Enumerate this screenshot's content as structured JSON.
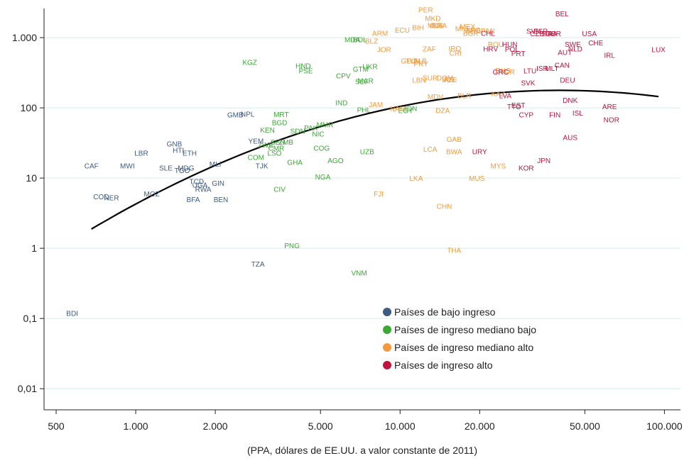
{
  "chart_data": {
    "type": "scatter",
    "x_scale": "log",
    "y_scale": "log",
    "xlim": [
      450,
      115000
    ],
    "ylim": [
      0.005,
      2600
    ],
    "xlabel": "(PPA, dólares de EE.UU. a valor constante de 2011)",
    "x_ticks": [
      {
        "value": 500,
        "label": "500"
      },
      {
        "value": 1000,
        "label": "1.000"
      },
      {
        "value": 2000,
        "label": "2.000"
      },
      {
        "value": 5000,
        "label": "5.000"
      },
      {
        "value": 10000,
        "label": "10.000"
      },
      {
        "value": 20000,
        "label": "20.000"
      },
      {
        "value": 50000,
        "label": "50.000"
      },
      {
        "value": 100000,
        "label": "100.000"
      }
    ],
    "y_ticks": [
      {
        "value": 0.01,
        "label": "0,01"
      },
      {
        "value": 0.1,
        "label": "0,1"
      },
      {
        "value": 1,
        "label": "1"
      },
      {
        "value": 10,
        "label": "10"
      },
      {
        "value": 100,
        "label": "100"
      },
      {
        "value": 1000,
        "label": "1.000"
      }
    ],
    "grid": "horizontal",
    "legend_position": "bottom-right",
    "colors": {
      "low": "#3d5a80",
      "lower_middle": "#3aaa35",
      "upper_middle": "#f59a3a",
      "high": "#c0143c",
      "fit": "#000000",
      "grid": "#d6ecec"
    },
    "series": [
      {
        "key": "low",
        "name": "Países de bajo ingreso",
        "points": [
          {
            "x": 575,
            "y": 0.12,
            "label": "BDI"
          },
          {
            "x": 680,
            "y": 15,
            "label": "CAF"
          },
          {
            "x": 740,
            "y": 5.5,
            "label": "COD"
          },
          {
            "x": 810,
            "y": 5.3,
            "label": "NER"
          },
          {
            "x": 930,
            "y": 15,
            "label": "MWI"
          },
          {
            "x": 1050,
            "y": 23,
            "label": "LBR"
          },
          {
            "x": 1150,
            "y": 6,
            "label": "MOZ"
          },
          {
            "x": 1300,
            "y": 14,
            "label": "SLE"
          },
          {
            "x": 1400,
            "y": 31,
            "label": "GNB"
          },
          {
            "x": 1450,
            "y": 25,
            "label": "HTI"
          },
          {
            "x": 1500,
            "y": 13,
            "label": "TGO"
          },
          {
            "x": 1550,
            "y": 14,
            "label": "MDG"
          },
          {
            "x": 1600,
            "y": 23,
            "label": "ETH"
          },
          {
            "x": 1650,
            "y": 5,
            "label": "BFA"
          },
          {
            "x": 1700,
            "y": 9,
            "label": "TCD"
          },
          {
            "x": 1750,
            "y": 8,
            "label": "UGA"
          },
          {
            "x": 1800,
            "y": 7,
            "label": "RWA"
          },
          {
            "x": 2000,
            "y": 16,
            "label": "MLI"
          },
          {
            "x": 2050,
            "y": 8.5,
            "label": "GIN"
          },
          {
            "x": 2100,
            "y": 5,
            "label": "BEN"
          },
          {
            "x": 2380,
            "y": 80,
            "label": "GMB"
          },
          {
            "x": 2650,
            "y": 82,
            "label": "NPL"
          },
          {
            "x": 2900,
            "y": 0.6,
            "label": "TZA"
          },
          {
            "x": 2850,
            "y": 34,
            "label": "YEM"
          },
          {
            "x": 3000,
            "y": 15,
            "label": "TJK"
          }
        ]
      },
      {
        "key": "lower_middle",
        "name": "Países de ingreso mediano bajo",
        "points": [
          {
            "x": 2700,
            "y": 450,
            "label": "KGZ"
          },
          {
            "x": 3100,
            "y": 30,
            "label": "ZWE"
          },
          {
            "x": 2850,
            "y": 20,
            "label": "COM"
          },
          {
            "x": 3150,
            "y": 49,
            "label": "KEN"
          },
          {
            "x": 3400,
            "y": 27,
            "label": "CMR"
          },
          {
            "x": 3450,
            "y": 33,
            "label": "SEN"
          },
          {
            "x": 3700,
            "y": 33,
            "label": "ZMB"
          },
          {
            "x": 3350,
            "y": 23,
            "label": "LSO"
          },
          {
            "x": 3500,
            "y": 62,
            "label": "BGD"
          },
          {
            "x": 3550,
            "y": 81,
            "label": "MRT"
          },
          {
            "x": 3500,
            "y": 7,
            "label": "CIV"
          },
          {
            "x": 3900,
            "y": 1.1,
            "label": "PNG"
          },
          {
            "x": 4000,
            "y": 17,
            "label": "GHA"
          },
          {
            "x": 4100,
            "y": 47,
            "label": "SDN"
          },
          {
            "x": 4300,
            "y": 400,
            "label": "HND"
          },
          {
            "x": 4400,
            "y": 340,
            "label": "PSE"
          },
          {
            "x": 4600,
            "y": 52,
            "label": "PAK"
          },
          {
            "x": 4900,
            "y": 43,
            "label": "NIC"
          },
          {
            "x": 5200,
            "y": 58,
            "label": "MMR"
          },
          {
            "x": 5050,
            "y": 27,
            "label": "COG"
          },
          {
            "x": 5100,
            "y": 10.5,
            "label": "NGA"
          },
          {
            "x": 5700,
            "y": 18,
            "label": "AGO"
          },
          {
            "x": 6000,
            "y": 120,
            "label": "IND"
          },
          {
            "x": 6100,
            "y": 290,
            "label": "CPV"
          },
          {
            "x": 6600,
            "y": 950,
            "label": "MDA"
          },
          {
            "x": 7000,
            "y": 0.45,
            "label": "VNM"
          },
          {
            "x": 7050,
            "y": 950,
            "label": "BOL"
          },
          {
            "x": 7100,
            "y": 360,
            "label": "GTM"
          },
          {
            "x": 7150,
            "y": 240,
            "label": "SLV"
          },
          {
            "x": 7300,
            "y": 95,
            "label": "PHL"
          },
          {
            "x": 7400,
            "y": 245,
            "label": "MAR"
          },
          {
            "x": 7500,
            "y": 24,
            "label": "UZB"
          },
          {
            "x": 7700,
            "y": 390,
            "label": "UKR"
          },
          {
            "x": 10500,
            "y": 92,
            "label": "EGY"
          },
          {
            "x": 11000,
            "y": 99,
            "label": "IDN"
          }
        ]
      },
      {
        "key": "upper_middle",
        "name": "Países de ingreso mediano alto",
        "points": [
          {
            "x": 7800,
            "y": 900,
            "label": "BLZ"
          },
          {
            "x": 8100,
            "y": 112,
            "label": "JAM"
          },
          {
            "x": 8300,
            "y": 6,
            "label": "FJI"
          },
          {
            "x": 8400,
            "y": 1170,
            "label": "ARM"
          },
          {
            "x": 8700,
            "y": 680,
            "label": "JOR"
          },
          {
            "x": 9800,
            "y": 98,
            "label": "NAM"
          },
          {
            "x": 10200,
            "y": 1300,
            "label": "ECU"
          },
          {
            "x": 10800,
            "y": 470,
            "label": "GEO"
          },
          {
            "x": 11200,
            "y": 470,
            "label": "TUN"
          },
          {
            "x": 11500,
            "y": 10,
            "label": "LKA"
          },
          {
            "x": 11700,
            "y": 1400,
            "label": "BIH"
          },
          {
            "x": 11900,
            "y": 470,
            "label": "ALB"
          },
          {
            "x": 11800,
            "y": 250,
            "label": "LBN"
          },
          {
            "x": 12000,
            "y": 430,
            "label": "PRY"
          },
          {
            "x": 12500,
            "y": 2500,
            "label": "PER"
          },
          {
            "x": 13000,
            "y": 26,
            "label": "LCA"
          },
          {
            "x": 12900,
            "y": 700,
            "label": "ZAF"
          },
          {
            "x": 13000,
            "y": 270,
            "label": "SUR"
          },
          {
            "x": 13300,
            "y": 1900,
            "label": "MKD"
          },
          {
            "x": 13600,
            "y": 1500,
            "label": "MUS"
          },
          {
            "x": 13800,
            "y": 1500,
            "label": "COL"
          },
          {
            "x": 14100,
            "y": 1500,
            "label": "BRA"
          },
          {
            "x": 13600,
            "y": 145,
            "label": "MDV"
          },
          {
            "x": 14500,
            "y": 92,
            "label": "DZA"
          },
          {
            "x": 14700,
            "y": 4,
            "label": "CHN"
          },
          {
            "x": 14800,
            "y": 270,
            "label": "DOM"
          },
          {
            "x": 15200,
            "y": 255,
            "label": "IRN"
          },
          {
            "x": 15500,
            "y": 255,
            "label": "AZE"
          },
          {
            "x": 16000,
            "y": 0.95,
            "label": "THA"
          },
          {
            "x": 16000,
            "y": 36,
            "label": "GAB"
          },
          {
            "x": 16000,
            "y": 24,
            "label": "BWA"
          },
          {
            "x": 16100,
            "y": 705,
            "label": "IRQ"
          },
          {
            "x": 16200,
            "y": 610,
            "label": "CRI"
          },
          {
            "x": 17300,
            "y": 1350,
            "label": "MNE"
          },
          {
            "x": 17500,
            "y": 150,
            "label": "BLR"
          },
          {
            "x": 18000,
            "y": 1450,
            "label": "MEX"
          },
          {
            "x": 18500,
            "y": 1170,
            "label": "BGR"
          },
          {
            "x": 18900,
            "y": 1300,
            "label": "ARG"
          },
          {
            "x": 19000,
            "y": 1260,
            "label": "SRB"
          },
          {
            "x": 19500,
            "y": 10,
            "label": "MUS"
          },
          {
            "x": 21500,
            "y": 1260,
            "label": "PAN"
          },
          {
            "x": 23000,
            "y": 810,
            "label": "ROU"
          },
          {
            "x": 23500,
            "y": 15,
            "label": "MYS"
          },
          {
            "x": 23500,
            "y": 160,
            "label": "KAZ"
          },
          {
            "x": 24500,
            "y": 345,
            "label": "RUS"
          },
          {
            "x": 25500,
            "y": 330,
            "label": "TUR"
          }
        ]
      },
      {
        "key": "high",
        "name": "Países de ingreso alto",
        "points": [
          {
            "x": 20000,
            "y": 24,
            "label": "URY"
          },
          {
            "x": 21500,
            "y": 1170,
            "label": "CHL"
          },
          {
            "x": 22000,
            "y": 700,
            "label": "HRV"
          },
          {
            "x": 24000,
            "y": 330,
            "label": "GRC"
          },
          {
            "x": 25000,
            "y": 150,
            "label": "LVA"
          },
          {
            "x": 26000,
            "y": 810,
            "label": "HUN"
          },
          {
            "x": 26500,
            "y": 690,
            "label": "POL"
          },
          {
            "x": 27000,
            "y": 105,
            "label": "TTO"
          },
          {
            "x": 28000,
            "y": 110,
            "label": "EST"
          },
          {
            "x": 28000,
            "y": 600,
            "label": "PRT"
          },
          {
            "x": 30000,
            "y": 14,
            "label": "KOR"
          },
          {
            "x": 30000,
            "y": 80,
            "label": "CYP"
          },
          {
            "x": 30500,
            "y": 230,
            "label": "SVK"
          },
          {
            "x": 31000,
            "y": 340,
            "label": "LTU"
          },
          {
            "x": 32000,
            "y": 1250,
            "label": "SVN"
          },
          {
            "x": 33000,
            "y": 1150,
            "label": "CZE"
          },
          {
            "x": 34000,
            "y": 1250,
            "label": "ESP"
          },
          {
            "x": 34500,
            "y": 370,
            "label": "ISR"
          },
          {
            "x": 35000,
            "y": 18,
            "label": "JPN"
          },
          {
            "x": 36000,
            "y": 1150,
            "label": "ITA"
          },
          {
            "x": 37000,
            "y": 1150,
            "label": "FRA"
          },
          {
            "x": 37500,
            "y": 370,
            "label": "MLT"
          },
          {
            "x": 38000,
            "y": 1150,
            "label": "GBR"
          },
          {
            "x": 38500,
            "y": 80,
            "label": "FIN"
          },
          {
            "x": 41000,
            "y": 2200,
            "label": "BEL"
          },
          {
            "x": 41000,
            "y": 410,
            "label": "CAN"
          },
          {
            "x": 42000,
            "y": 620,
            "label": "AUT"
          },
          {
            "x": 43000,
            "y": 250,
            "label": "DEU"
          },
          {
            "x": 44000,
            "y": 130,
            "label": "DNK"
          },
          {
            "x": 44000,
            "y": 38,
            "label": "AUS"
          },
          {
            "x": 45000,
            "y": 810,
            "label": "SWE"
          },
          {
            "x": 46000,
            "y": 700,
            "label": "NLD"
          },
          {
            "x": 47000,
            "y": 85,
            "label": "ISL"
          },
          {
            "x": 52000,
            "y": 1150,
            "label": "USA"
          },
          {
            "x": 55000,
            "y": 850,
            "label": "CHE"
          },
          {
            "x": 62000,
            "y": 570,
            "label": "IRL"
          },
          {
            "x": 62000,
            "y": 105,
            "label": "ARE"
          },
          {
            "x": 63000,
            "y": 68,
            "label": "NOR"
          },
          {
            "x": 95000,
            "y": 680,
            "label": "LUX"
          }
        ]
      }
    ],
    "trend_line": {
      "type": "quadratic-log-fit",
      "x_range": [
        680,
        95000
      ],
      "coefficients": [
        -11.1,
        5.8,
        -0.63
      ]
    }
  }
}
